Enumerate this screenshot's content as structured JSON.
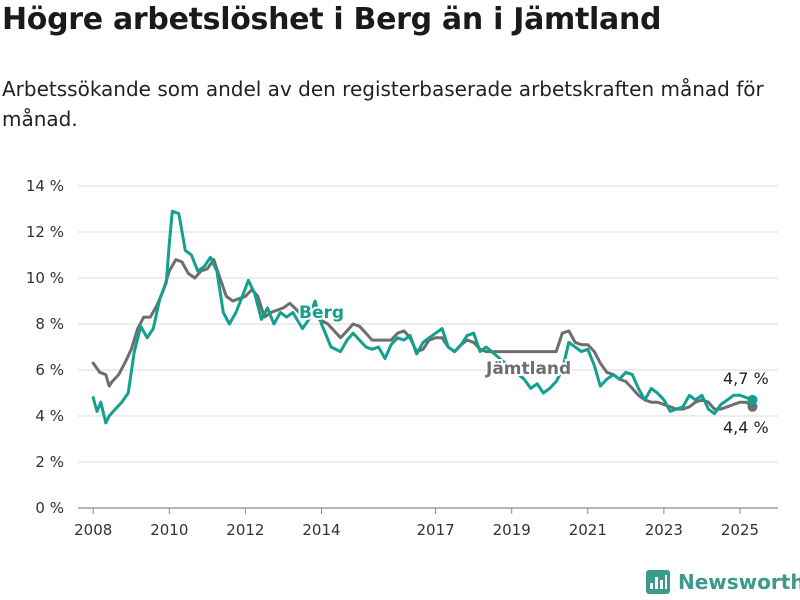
{
  "title": "Högre arbetslöshet i Berg än i Jämtland",
  "subtitle": "Arbetssökande som andel av den registerbaserade arbetskraften månad för månad.",
  "brand": "Newsworthy",
  "colors": {
    "berg": "#13a08e",
    "jamtland": "#6e6e6e",
    "grid": "#d9d9d9"
  },
  "chart_data": {
    "type": "line",
    "x_unit": "year",
    "xlim": [
      2007.6,
      2026.0
    ],
    "ylim": [
      0,
      14
    ],
    "grid": true,
    "x_ticks": [
      2008,
      2010,
      2012,
      2014,
      2017,
      2019,
      2021,
      2023,
      2025
    ],
    "x_tick_labels": [
      "2008",
      "2010",
      "2012",
      "2014",
      "2017",
      "2019",
      "2021",
      "2023",
      "2025"
    ],
    "y_ticks": [
      0,
      2,
      4,
      6,
      8,
      10,
      12,
      14
    ],
    "y_tick_labels": [
      "0 %",
      "2 %",
      "4 %",
      "6 %",
      "8 %",
      "10 %",
      "12 %",
      "14 %"
    ],
    "series": [
      {
        "name": "Jämtland",
        "color_key": "jamtland",
        "end_label": "4,4 %",
        "points": [
          [
            2008.0,
            6.3
          ],
          [
            2008.17,
            5.9
          ],
          [
            2008.33,
            5.8
          ],
          [
            2008.42,
            5.3
          ],
          [
            2008.5,
            5.5
          ],
          [
            2008.67,
            5.8
          ],
          [
            2008.83,
            6.3
          ],
          [
            2009.0,
            6.9
          ],
          [
            2009.17,
            7.8
          ],
          [
            2009.33,
            8.3
          ],
          [
            2009.5,
            8.3
          ],
          [
            2009.67,
            8.8
          ],
          [
            2009.83,
            9.4
          ],
          [
            2010.0,
            10.3
          ],
          [
            2010.17,
            10.8
          ],
          [
            2010.33,
            10.7
          ],
          [
            2010.5,
            10.2
          ],
          [
            2010.67,
            10.0
          ],
          [
            2010.83,
            10.3
          ],
          [
            2011.0,
            10.4
          ],
          [
            2011.17,
            10.8
          ],
          [
            2011.33,
            10.0
          ],
          [
            2011.5,
            9.2
          ],
          [
            2011.67,
            9.0
          ],
          [
            2011.83,
            9.1
          ],
          [
            2012.0,
            9.2
          ],
          [
            2012.17,
            9.5
          ],
          [
            2012.33,
            9.2
          ],
          [
            2012.5,
            8.3
          ],
          [
            2012.67,
            8.5
          ],
          [
            2012.83,
            8.6
          ],
          [
            2013.0,
            8.7
          ],
          [
            2013.17,
            8.9
          ],
          [
            2013.42,
            8.5
          ],
          [
            2013.83,
            8.3
          ],
          [
            2014.17,
            8.0
          ],
          [
            2014.5,
            7.4
          ],
          [
            2014.67,
            7.7
          ],
          [
            2014.83,
            8.0
          ],
          [
            2015.0,
            7.9
          ],
          [
            2015.17,
            7.6
          ],
          [
            2015.33,
            7.3
          ],
          [
            2015.67,
            7.3
          ],
          [
            2015.83,
            7.3
          ],
          [
            2016.0,
            7.6
          ],
          [
            2016.17,
            7.7
          ],
          [
            2016.33,
            7.4
          ],
          [
            2016.5,
            6.8
          ],
          [
            2016.67,
            6.9
          ],
          [
            2016.83,
            7.3
          ],
          [
            2017.0,
            7.4
          ],
          [
            2017.17,
            7.4
          ],
          [
            2017.33,
            7.0
          ],
          [
            2017.5,
            6.8
          ],
          [
            2017.67,
            7.1
          ],
          [
            2017.83,
            7.3
          ],
          [
            2018.0,
            7.2
          ],
          [
            2018.17,
            6.9
          ],
          [
            2018.33,
            6.8
          ],
          [
            2020.17,
            6.8
          ],
          [
            2020.33,
            7.6
          ],
          [
            2020.5,
            7.7
          ],
          [
            2020.67,
            7.2
          ],
          [
            2020.83,
            7.1
          ],
          [
            2021.0,
            7.1
          ],
          [
            2021.17,
            6.8
          ],
          [
            2021.33,
            6.3
          ],
          [
            2021.5,
            5.9
          ],
          [
            2021.67,
            5.8
          ],
          [
            2021.83,
            5.6
          ],
          [
            2022.0,
            5.5
          ],
          [
            2022.17,
            5.2
          ],
          [
            2022.33,
            4.9
          ],
          [
            2022.5,
            4.7
          ],
          [
            2022.67,
            4.6
          ],
          [
            2022.83,
            4.6
          ],
          [
            2023.0,
            4.5
          ],
          [
            2023.17,
            4.4
          ],
          [
            2023.33,
            4.3
          ],
          [
            2023.5,
            4.3
          ],
          [
            2023.67,
            4.4
          ],
          [
            2023.83,
            4.6
          ],
          [
            2024.0,
            4.7
          ],
          [
            2024.17,
            4.6
          ],
          [
            2024.33,
            4.3
          ],
          [
            2024.5,
            4.3
          ],
          [
            2024.67,
            4.4
          ],
          [
            2024.83,
            4.5
          ],
          [
            2025.0,
            4.6
          ],
          [
            2025.17,
            4.6
          ],
          [
            2025.33,
            4.4
          ]
        ]
      },
      {
        "name": "Berg",
        "color_key": "berg",
        "end_label": "4,7 %",
        "points": [
          [
            2008.0,
            4.8
          ],
          [
            2008.1,
            4.2
          ],
          [
            2008.2,
            4.6
          ],
          [
            2008.33,
            3.7
          ],
          [
            2008.42,
            4.0
          ],
          [
            2008.58,
            4.3
          ],
          [
            2008.75,
            4.6
          ],
          [
            2008.92,
            5.0
          ],
          [
            2009.08,
            6.8
          ],
          [
            2009.25,
            7.9
          ],
          [
            2009.42,
            7.4
          ],
          [
            2009.58,
            7.8
          ],
          [
            2009.75,
            9.1
          ],
          [
            2009.92,
            9.8
          ],
          [
            2010.0,
            11.5
          ],
          [
            2010.08,
            12.9
          ],
          [
            2010.25,
            12.8
          ],
          [
            2010.42,
            11.2
          ],
          [
            2010.58,
            11.0
          ],
          [
            2010.75,
            10.3
          ],
          [
            2010.92,
            10.5
          ],
          [
            2011.08,
            10.9
          ],
          [
            2011.25,
            10.3
          ],
          [
            2011.42,
            8.5
          ],
          [
            2011.58,
            8.0
          ],
          [
            2011.75,
            8.5
          ],
          [
            2011.92,
            9.2
          ],
          [
            2012.08,
            9.9
          ],
          [
            2012.25,
            9.3
          ],
          [
            2012.42,
            8.2
          ],
          [
            2012.58,
            8.7
          ],
          [
            2012.75,
            8.0
          ],
          [
            2012.92,
            8.5
          ],
          [
            2013.08,
            8.3
          ],
          [
            2013.25,
            8.5
          ],
          [
            2013.5,
            7.8
          ],
          [
            2013.67,
            8.2
          ],
          [
            2013.83,
            9.0
          ],
          [
            2014.0,
            8.0
          ],
          [
            2014.25,
            7.0
          ],
          [
            2014.5,
            6.8
          ],
          [
            2014.67,
            7.3
          ],
          [
            2014.83,
            7.6
          ],
          [
            2015.0,
            7.3
          ],
          [
            2015.17,
            7.0
          ],
          [
            2015.33,
            6.9
          ],
          [
            2015.5,
            7.0
          ],
          [
            2015.67,
            6.5
          ],
          [
            2015.83,
            7.1
          ],
          [
            2016.0,
            7.4
          ],
          [
            2016.17,
            7.3
          ],
          [
            2016.33,
            7.5
          ],
          [
            2016.5,
            6.7
          ],
          [
            2016.67,
            7.2
          ],
          [
            2016.83,
            7.4
          ],
          [
            2017.0,
            7.6
          ],
          [
            2017.17,
            7.8
          ],
          [
            2017.33,
            7.0
          ],
          [
            2017.5,
            6.8
          ],
          [
            2017.67,
            7.1
          ],
          [
            2017.83,
            7.5
          ],
          [
            2018.0,
            7.6
          ],
          [
            2018.17,
            6.8
          ],
          [
            2018.33,
            7.0
          ],
          [
            2019.33,
            5.6
          ],
          [
            2019.5,
            5.2
          ],
          [
            2019.67,
            5.4
          ],
          [
            2019.83,
            5.0
          ],
          [
            2020.0,
            5.2
          ],
          [
            2020.17,
            5.5
          ],
          [
            2020.33,
            6.0
          ],
          [
            2020.5,
            7.2
          ],
          [
            2020.67,
            7.0
          ],
          [
            2020.83,
            6.8
          ],
          [
            2021.0,
            6.9
          ],
          [
            2021.17,
            6.2
          ],
          [
            2021.33,
            5.3
          ],
          [
            2021.5,
            5.6
          ],
          [
            2021.67,
            5.8
          ],
          [
            2021.83,
            5.6
          ],
          [
            2022.0,
            5.9
          ],
          [
            2022.17,
            5.8
          ],
          [
            2022.33,
            5.2
          ],
          [
            2022.5,
            4.7
          ],
          [
            2022.67,
            5.2
          ],
          [
            2022.83,
            5.0
          ],
          [
            2023.0,
            4.7
          ],
          [
            2023.17,
            4.2
          ],
          [
            2023.33,
            4.3
          ],
          [
            2023.5,
            4.4
          ],
          [
            2023.67,
            4.9
          ],
          [
            2023.83,
            4.7
          ],
          [
            2024.0,
            4.9
          ],
          [
            2024.17,
            4.3
          ],
          [
            2024.33,
            4.1
          ],
          [
            2024.5,
            4.5
          ],
          [
            2024.67,
            4.7
          ],
          [
            2024.83,
            4.9
          ],
          [
            2025.0,
            4.9
          ],
          [
            2025.17,
            4.8
          ],
          [
            2025.33,
            4.7
          ]
        ]
      }
    ]
  }
}
